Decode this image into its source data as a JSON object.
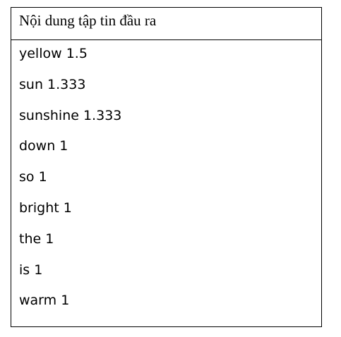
{
  "table": {
    "header": "Nội dung tập tin đầu ra",
    "lines": [
      "yellow 1.5",
      "sun 1.333",
      "sunshine 1.333",
      "down 1",
      "so 1",
      "bright 1",
      "the 1",
      "is 1",
      "warm 1"
    ]
  }
}
